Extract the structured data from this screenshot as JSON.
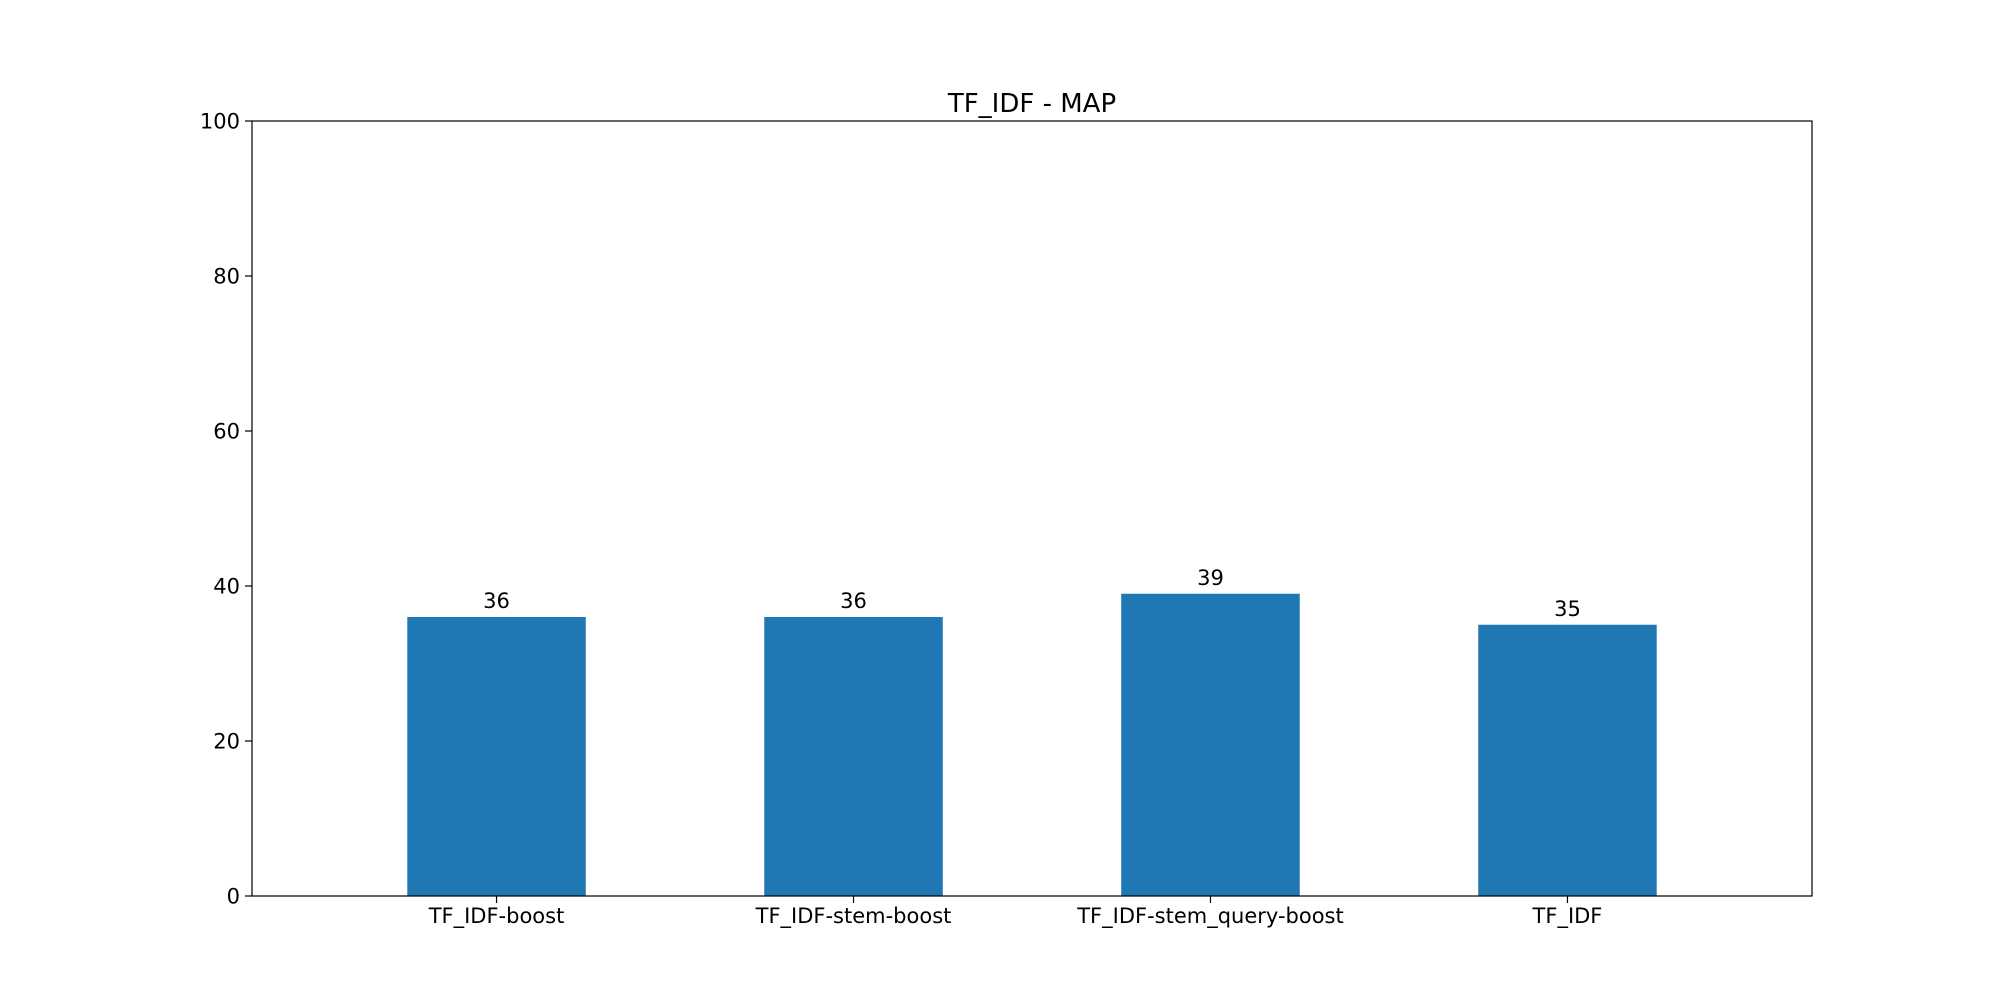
{
  "chart_data": {
    "type": "bar",
    "title": "TF_IDF - MAP",
    "xlabel": "",
    "ylabel": "",
    "categories": [
      "TF_IDF-boost",
      "TF_IDF-stem-boost",
      "TF_IDF-stem_query-boost",
      "TF_IDF"
    ],
    "values": [
      36,
      36,
      39,
      35
    ],
    "data_labels": [
      "36",
      "36",
      "39",
      "35"
    ],
    "ylim": [
      0,
      100
    ],
    "yticks": [
      0,
      20,
      40,
      60,
      80,
      100
    ],
    "grid": false,
    "legend": "none",
    "bar_color": "#1f77b4"
  }
}
